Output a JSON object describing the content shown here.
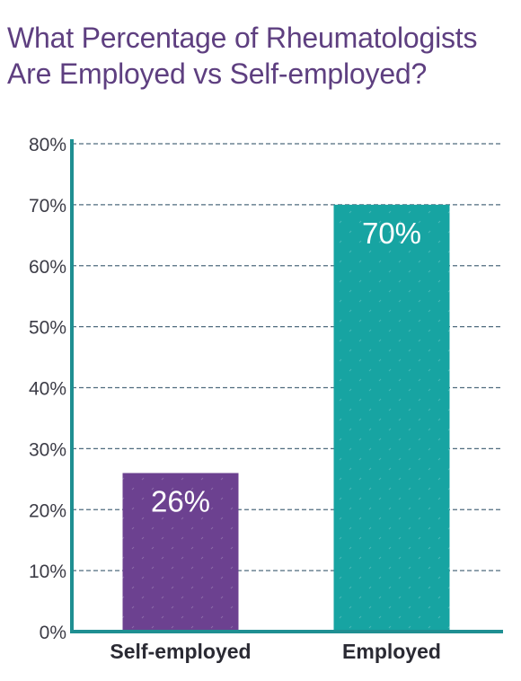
{
  "chart_data": {
    "type": "bar",
    "title_lines": [
      "What Percentage of Rheumatologists",
      "Are Employed vs Self-employed?"
    ],
    "categories": [
      "Self-employed",
      "Employed"
    ],
    "values": [
      26,
      70
    ],
    "data_labels": [
      "26%",
      "70%"
    ],
    "bar_colors": [
      "#6c4190",
      "#17a4a2"
    ],
    "yticks": [
      "0%",
      "10%",
      "20%",
      "30%",
      "40%",
      "50%",
      "60%",
      "70%",
      "80%"
    ],
    "ylim": [
      0,
      80
    ],
    "grid": true,
    "grid_style": "dashed",
    "axis_color": "#1f8f92",
    "grid_color": "#4f6b7e",
    "title_color": "#5e3f80"
  }
}
